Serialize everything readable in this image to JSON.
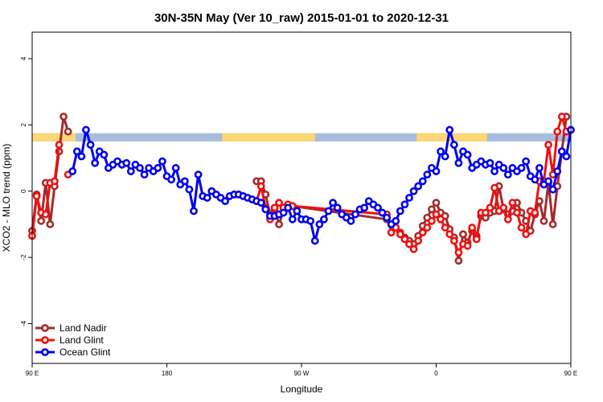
{
  "chart_data": {
    "type": "line",
    "title": "30N-35N May (Ver 10_raw)   2015-01-01 to 2020-12-31",
    "xlabel": "Longitude",
    "ylabel": "XCO2 - MLO trend (ppm)",
    "xlim": [
      90,
      450
    ],
    "ylim": [
      -5.2,
      4.8
    ],
    "x_ticks": [
      {
        "value": 90,
        "label": "90 E"
      },
      {
        "value": 180,
        "label": "180"
      },
      {
        "value": 270,
        "label": "90 W"
      },
      {
        "value": 360,
        "label": "0"
      },
      {
        "value": 450,
        "label": "90 E"
      },
      {
        "value": 540,
        "label": "180"
      }
    ],
    "y_ticks": [
      {
        "value": -4,
        "label": "-4"
      },
      {
        "value": -2,
        "label": "-2"
      },
      {
        "value": 0,
        "label": "0"
      },
      {
        "value": 2,
        "label": "2"
      },
      {
        "value": 4,
        "label": "4"
      }
    ],
    "grid": false,
    "legend_position": "bottom-left",
    "band": {
      "y_range": [
        1.5,
        1.75
      ],
      "ocean_color": "#a7bddc",
      "land_color": "#fbd775",
      "land_segments": [
        [
          90,
          119
        ],
        [
          217,
          279
        ],
        [
          347,
          394
        ],
        [
          477,
          509
        ]
      ]
    },
    "series": [
      {
        "name": "Land Nadir",
        "color": "#a52a2a",
        "x": [
          90,
          93,
          96,
          99,
          102,
          105,
          108,
          111,
          114,
          117,
          240,
          243,
          246,
          249,
          252,
          255,
          258,
          261,
          264,
          327,
          330,
          333,
          336,
          339,
          342,
          345,
          348,
          351,
          354,
          357,
          360,
          363,
          366,
          369,
          372,
          375,
          378,
          381,
          384,
          387,
          390,
          393,
          396,
          399,
          402,
          405,
          408,
          411,
          414,
          417,
          420,
          423,
          426,
          429,
          432,
          435,
          438,
          441,
          444,
          447
        ],
        "y": [
          -1.2,
          -0.1,
          -0.9,
          0.25,
          -1.0,
          0.15,
          1.2,
          2.25,
          1.8,
          null,
          0.3,
          0.3,
          -0.1,
          -0.7,
          -0.55,
          -1.0,
          -0.6,
          -0.5,
          -0.45,
          -0.85,
          -1.0,
          -1.1,
          -1.25,
          -1.4,
          -1.5,
          -1.6,
          -1.35,
          -1.05,
          -0.8,
          -0.55,
          -0.35,
          -0.65,
          -0.75,
          -1.15,
          -1.4,
          -2.1,
          -1.3,
          -1.55,
          -1.2,
          -1.35,
          -0.75,
          -0.8,
          -0.65,
          -0.6,
          0.15,
          -0.55,
          -0.7,
          -0.6,
          -0.35,
          -0.65,
          -0.9,
          -1.2,
          -0.7,
          -0.3,
          -0.9,
          0.25,
          -1.0,
          0.15,
          1.2,
          2.25
        ]
      },
      {
        "name": "Land Glint",
        "color": "#ee1111",
        "x": [
          90,
          93,
          96,
          99,
          102,
          105,
          108,
          111,
          114,
          117,
          240,
          243,
          246,
          249,
          252,
          255,
          258,
          261,
          264,
          327,
          330,
          333,
          336,
          339,
          342,
          345,
          348,
          351,
          354,
          357,
          360,
          363,
          366,
          369,
          372,
          375,
          378,
          381,
          384,
          387,
          390,
          393,
          396,
          399,
          402,
          405,
          408,
          411,
          414,
          417,
          420,
          423,
          426,
          429,
          432,
          435,
          438,
          441,
          444,
          447
        ],
        "y": [
          -1.35,
          -0.15,
          -0.65,
          -0.7,
          0.25,
          0.3,
          1.4,
          null,
          0.5,
          null,
          -0.3,
          0.15,
          -0.5,
          -0.85,
          -0.5,
          -0.35,
          -0.5,
          -0.4,
          -0.45,
          -0.7,
          -1.25,
          -1.1,
          -1.3,
          -1.45,
          -1.6,
          -1.75,
          -1.5,
          -1.25,
          -1.1,
          -0.9,
          -0.7,
          -0.85,
          -1.1,
          -1.3,
          -1.5,
          -1.85,
          -1.6,
          -1.65,
          -1.1,
          -1.45,
          -0.65,
          -0.65,
          -0.5,
          0.1,
          -0.6,
          -0.5,
          -0.85,
          -0.35,
          -0.65,
          -1.1,
          -1.3,
          -0.6,
          -0.65,
          0.3,
          0.3,
          1.4,
          0.5,
          1.8,
          2.25,
          1.8
        ]
      },
      {
        "name": "Ocean Glint",
        "color": "#0000ee",
        "x": [
          117,
          120,
          123,
          126,
          129,
          132,
          135,
          138,
          141,
          144,
          147,
          150,
          153,
          156,
          159,
          162,
          165,
          168,
          171,
          174,
          177,
          180,
          183,
          186,
          189,
          192,
          195,
          198,
          201,
          204,
          207,
          210,
          213,
          216,
          219,
          222,
          225,
          228,
          231,
          234,
          237,
          240,
          243,
          246,
          249,
          252,
          255,
          258,
          261,
          264,
          267,
          270,
          273,
          276,
          279,
          282,
          285,
          288,
          291,
          294,
          297,
          300,
          303,
          306,
          309,
          312,
          315,
          318,
          321,
          324,
          327,
          330,
          333,
          336,
          339,
          342,
          345,
          348,
          351,
          354,
          357,
          360,
          363,
          366,
          369,
          372,
          375,
          378,
          381,
          384,
          387,
          390,
          393,
          396,
          399,
          402,
          405,
          408,
          411,
          414,
          417,
          420,
          423,
          426,
          429,
          432,
          435,
          438,
          441,
          444,
          447,
          450
        ],
        "y": [
          0.6,
          1.2,
          1.05,
          1.85,
          1.4,
          0.85,
          1.2,
          1.1,
          0.7,
          0.8,
          0.9,
          0.8,
          0.85,
          0.6,
          0.8,
          0.7,
          0.5,
          0.7,
          0.6,
          0.7,
          0.9,
          0.45,
          0.35,
          0.7,
          0.2,
          0.3,
          0.05,
          -0.6,
          0.5,
          -0.15,
          -0.2,
          0.0,
          -0.1,
          -0.2,
          -0.3,
          -0.15,
          -0.1,
          -0.1,
          -0.15,
          -0.2,
          -0.25,
          -0.3,
          -0.35,
          -0.55,
          -0.75,
          -0.75,
          -0.7,
          -0.65,
          -0.5,
          -0.85,
          -0.6,
          -0.85,
          -0.85,
          -0.9,
          -1.5,
          -1.0,
          -0.85,
          -0.6,
          -0.35,
          -0.5,
          -0.7,
          -0.8,
          -0.9,
          -0.7,
          -0.55,
          -0.5,
          -0.3,
          -0.4,
          -0.5,
          -0.65,
          -0.8,
          -1.0,
          -0.9,
          -0.6,
          -0.4,
          -0.2,
          0.0,
          0.15,
          0.3,
          0.5,
          0.7,
          0.6,
          1.2,
          1.05,
          1.85,
          1.4,
          0.85,
          1.2,
          1.1,
          0.7,
          0.8,
          0.9,
          0.8,
          0.85,
          0.6,
          0.8,
          0.7,
          0.5,
          0.7,
          0.6,
          0.7,
          0.9,
          0.45,
          0.35,
          0.7,
          0.2,
          0.3,
          0.05,
          0.6,
          1.2,
          1.05,
          1.85
        ]
      }
    ]
  }
}
